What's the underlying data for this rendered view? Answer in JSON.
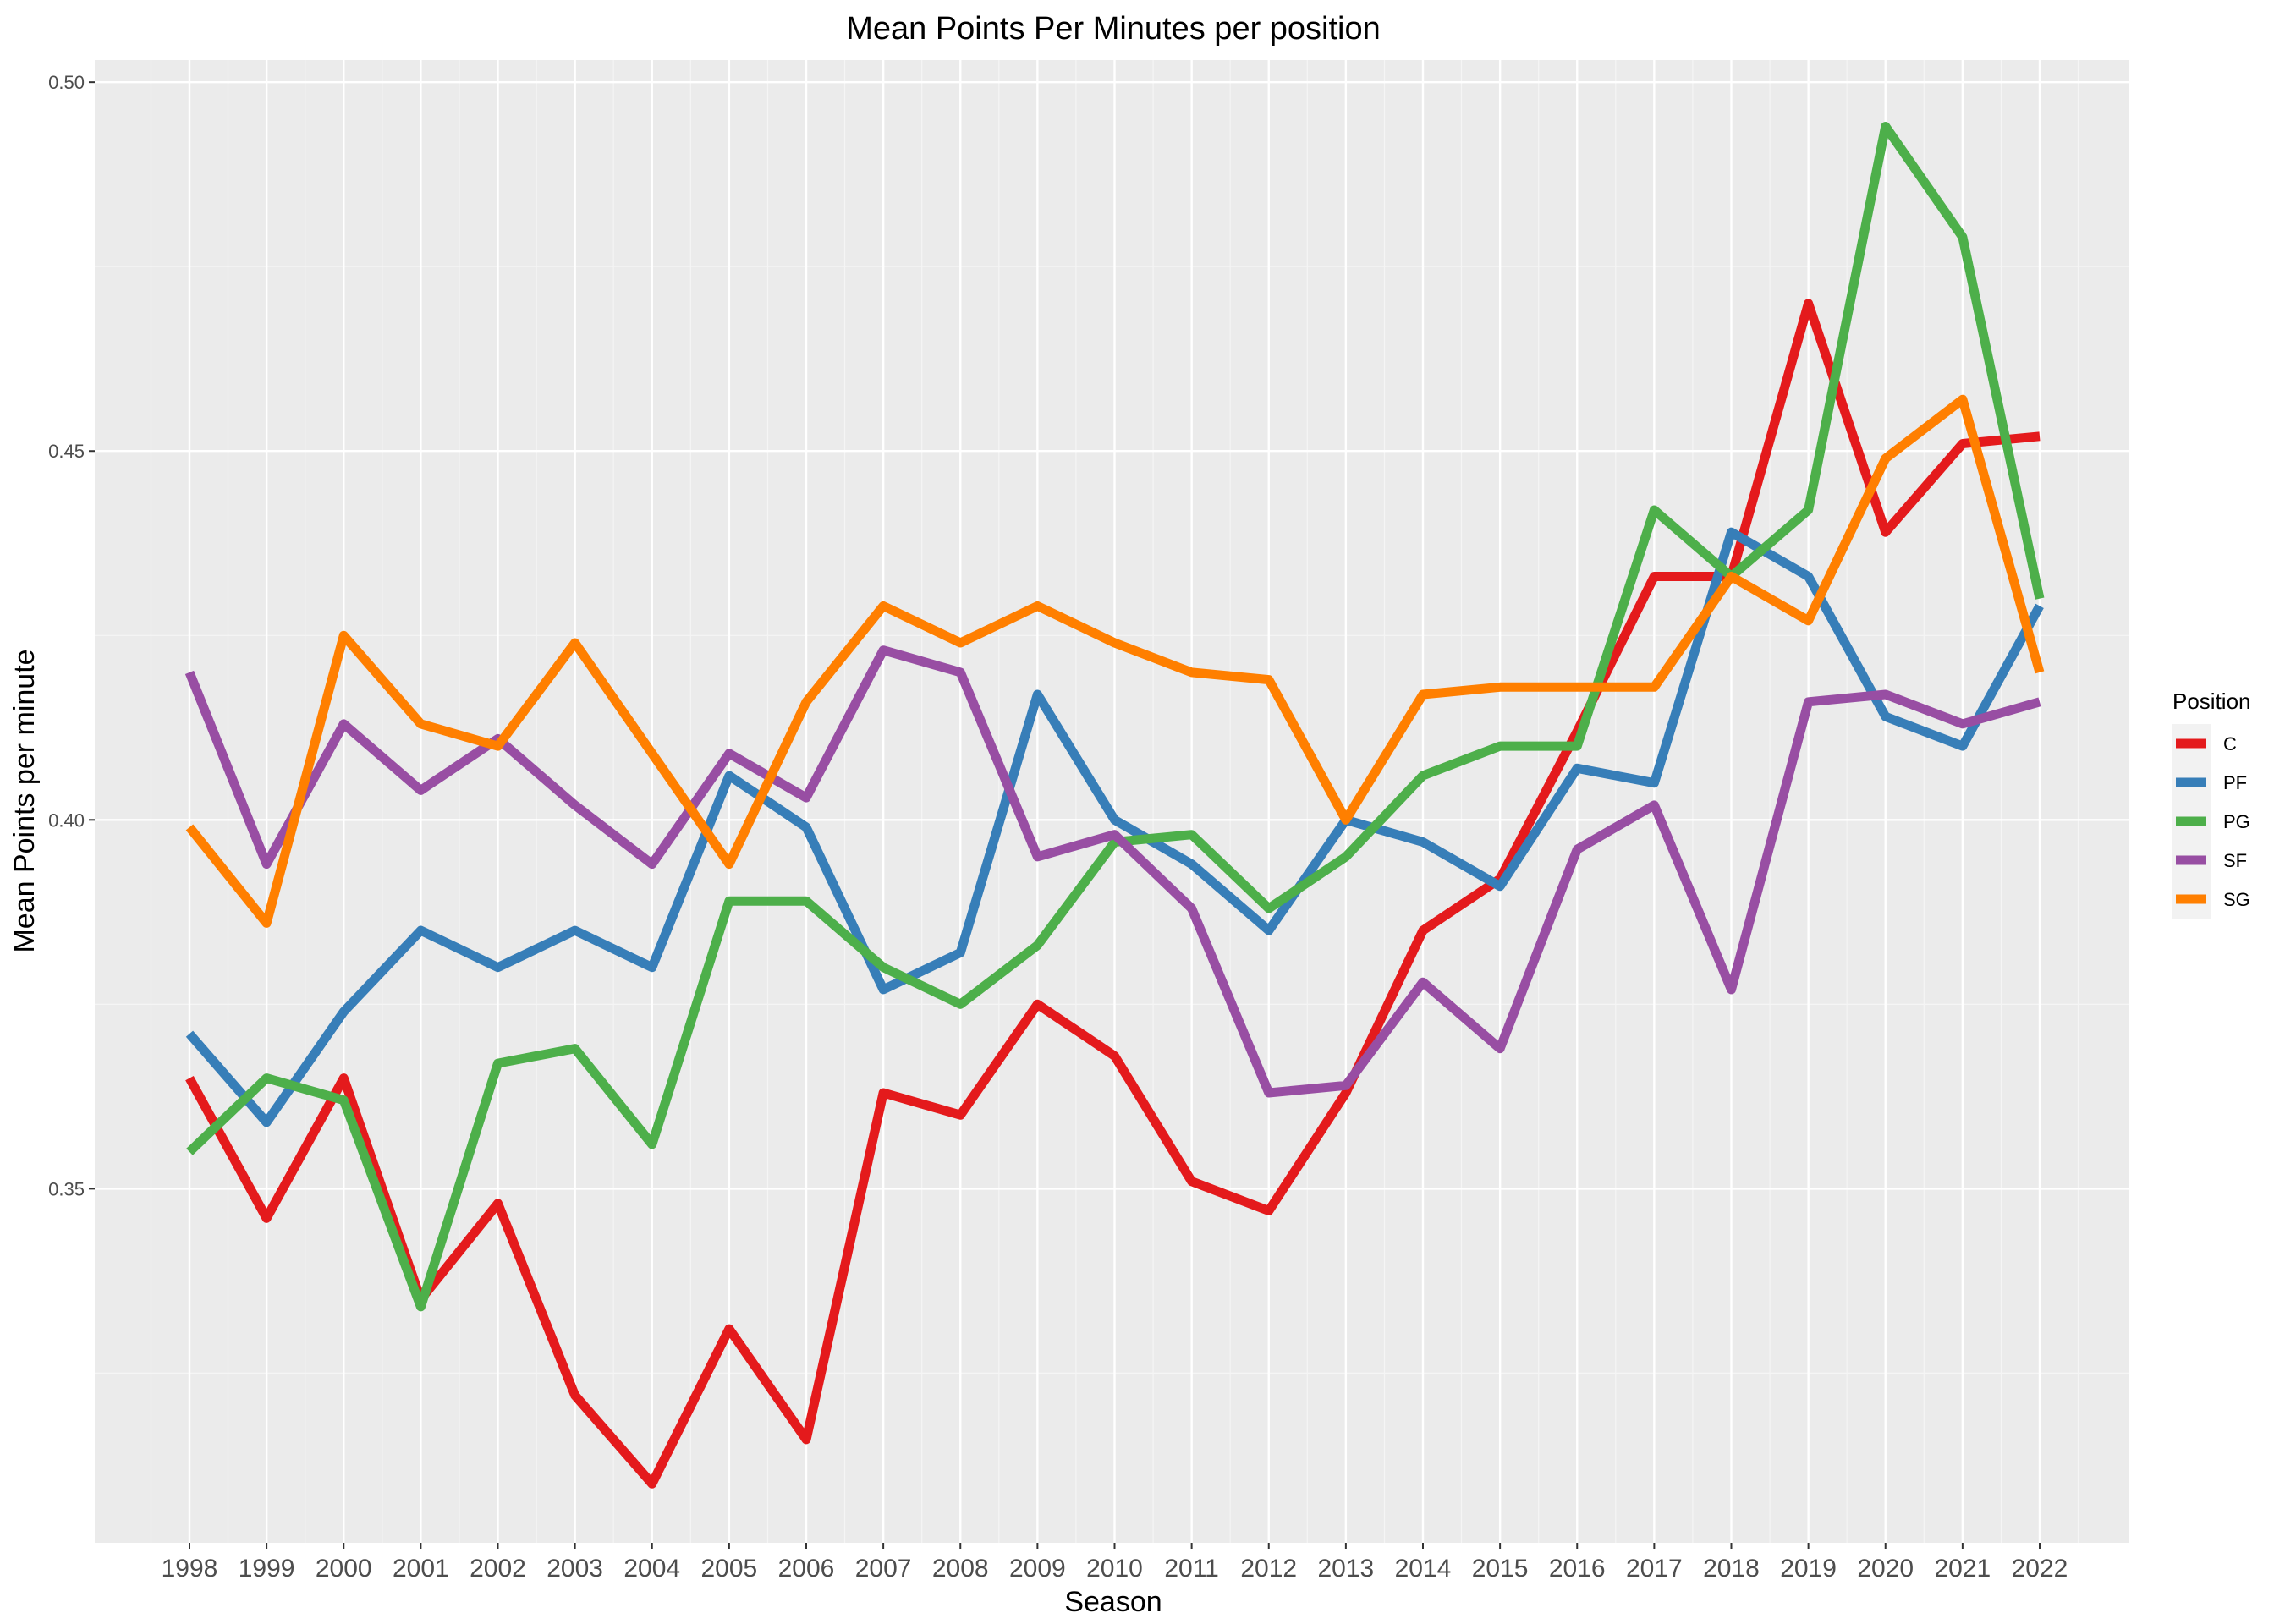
{
  "chart_data": {
    "type": "line",
    "title": "Mean Points Per Minutes per position",
    "xlabel": "Season",
    "ylabel": "Mean Points per minute",
    "ylim": [
      0.302,
      0.503
    ],
    "yticks": [
      0.35,
      0.4,
      0.45,
      0.5
    ],
    "ytick_labels": [
      "0.35",
      "0.40",
      "0.45",
      "0.50"
    ],
    "grid": true,
    "legend": {
      "title": "Position",
      "placement": "right"
    },
    "categories": [
      "1998",
      "1999",
      "2000",
      "2001",
      "2002",
      "2003",
      "2004",
      "2005",
      "2006",
      "2007",
      "2008",
      "2009",
      "2010",
      "2011",
      "2012",
      "2013",
      "2014",
      "2015",
      "2016",
      "2017",
      "2018",
      "2019",
      "2020",
      "2021",
      "2022"
    ],
    "series": [
      {
        "name": "C",
        "color": "#e41a1c",
        "values": [
          0.365,
          0.346,
          0.365,
          0.335,
          0.348,
          0.322,
          0.31,
          0.331,
          0.316,
          0.363,
          0.36,
          0.375,
          0.368,
          0.351,
          0.347,
          0.363,
          0.385,
          0.392,
          0.412,
          0.433,
          0.433,
          0.47,
          0.439,
          0.451,
          0.452
        ]
      },
      {
        "name": "PF",
        "color": "#377eb8",
        "values": [
          0.371,
          0.359,
          0.374,
          0.385,
          0.38,
          0.385,
          0.38,
          0.406,
          0.399,
          0.377,
          0.382,
          0.417,
          0.4,
          0.394,
          0.385,
          0.4,
          0.397,
          0.391,
          0.407,
          0.405,
          0.439,
          0.433,
          0.414,
          0.41,
          0.429
        ]
      },
      {
        "name": "PG",
        "color": "#4daf4a",
        "values": [
          0.355,
          0.365,
          0.362,
          0.334,
          0.367,
          0.369,
          0.356,
          0.389,
          0.389,
          0.38,
          0.375,
          0.383,
          0.397,
          0.398,
          0.388,
          0.395,
          0.406,
          0.41,
          0.41,
          0.442,
          0.433,
          0.442,
          0.494,
          0.479,
          0.43
        ]
      },
      {
        "name": "SF",
        "color": "#984ea3",
        "values": [
          0.42,
          0.394,
          0.413,
          0.404,
          0.411,
          0.402,
          0.394,
          0.409,
          0.403,
          0.423,
          0.42,
          0.395,
          0.398,
          0.388,
          0.363,
          0.364,
          0.378,
          0.369,
          0.396,
          0.402,
          0.377,
          0.416,
          0.417,
          0.413,
          0.416
        ]
      },
      {
        "name": "SG",
        "color": "#ff7f00",
        "values": [
          0.399,
          0.386,
          0.425,
          0.413,
          0.41,
          0.424,
          0.409,
          0.394,
          0.416,
          0.429,
          0.424,
          0.429,
          0.424,
          0.42,
          0.419,
          0.4,
          0.417,
          0.418,
          0.418,
          0.418,
          0.433,
          0.427,
          0.449,
          0.457,
          0.42
        ]
      }
    ]
  },
  "colors": {
    "panel_background": "#ebebeb",
    "grid_major": "#ffffff",
    "grid_minor": "#f5f5f5",
    "tick_text": "#4d4d4d"
  }
}
